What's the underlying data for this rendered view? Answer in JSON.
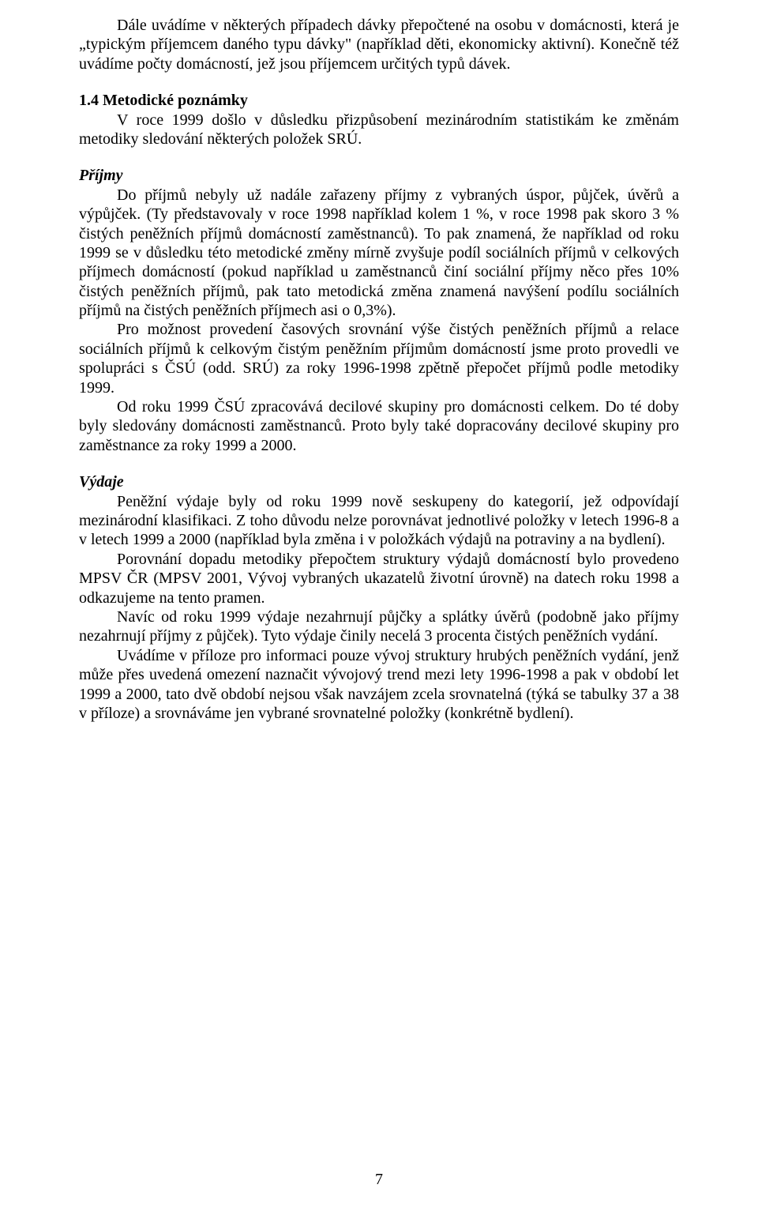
{
  "page": {
    "number": "7",
    "font_family": "Times New Roman",
    "font_size_pt": 15,
    "text_color": "#000000",
    "background_color": "#ffffff"
  },
  "p1": "Dále uvádíme v některých případech dávky přepočtené na osobu v domácnosti, která je „typickým příjemcem daného typu dávky\" (například děti, ekonomicky aktivní). Konečně též uvádíme  počty domácností, jež jsou příjemcem určitých typů dávek.",
  "h14_title": "1.4 Metodické poznámky",
  "h14_body": "V roce 1999 došlo v důsledku přizpůsobení mezinárodním statistikám ke změnám metodiky sledování některých položek SRÚ.",
  "prijmy_title": "Příjmy",
  "prijmy_p1": "Do příjmů nebyly už nadále zařazeny příjmy z vybraných úspor, půjček, úvěrů a výpůjček. (Ty představovaly v roce 1998 například kolem 1 %, v roce 1998 pak skoro 3 % čistých peněžních příjmů domácností zaměstnanců). To pak znamená, že například od roku 1999 se v důsledku této metodické změny mírně zvyšuje podíl sociálních příjmů v celkových příjmech domácností (pokud například u zaměstnanců činí sociální příjmy něco přes 10% čistých peněžních příjmů, pak tato metodická změna znamená navýšení podílu sociálních příjmů na čistých peněžních příjmech asi o 0,3%).",
  "prijmy_p2": "Pro možnost provedení časových srovnání výše čistých peněžních příjmů a relace sociálních příjmů k celkovým   čistým   peněžním příjmům domácností jsme proto provedli ve spolupráci s ČSÚ (odd. SRÚ) za roky 1996-1998 zpětně přepočet příjmů podle metodiky 1999.",
  "prijmy_p3": "Od roku 1999 ČSÚ zpracovává decilové skupiny pro domácnosti celkem. Do té doby byly sledovány domácnosti zaměstnanců. Proto byly také dopracovány decilové skupiny pro zaměstnance za roky 1999 a 2000.",
  "vydaje_title": "Výdaje",
  "vydaje_p1": "Peněžní výdaje byly od roku 1999 nově seskupeny do kategorií, jež odpovídají mezinárodní klasifikaci. Z toho důvodu nelze porovnávat jednotlivé položky v letech 1996-8 a v letech 1999 a 2000 (například byla změna i v položkách výdajů na potraviny a na bydlení).",
  "vydaje_p2": "Porovnání dopadu metodiky přepočtem struktury výdajů domácností bylo provedeno MPSV ČR (MPSV 2001, Vývoj vybraných ukazatelů životní úrovně) na datech roku 1998 a odkazujeme na tento pramen.",
  "vydaje_p3": "Navíc od roku 1999 výdaje nezahrnují půjčky a splátky úvěrů (podobně jako příjmy nezahrnují příjmy z půjček). Tyto výdaje činily necelá 3 procenta čistých peněžních vydání.",
  "vydaje_p4": "Uvádíme v příloze pro informaci pouze vývoj struktury hrubých peněžních vydání, jenž může přes uvedená omezení naznačit vývojový trend mezi lety 1996-1998 a pak v období let 1999 a 2000, tato dvě období nejsou však navzájem zcela srovnatelná (týká se tabulky 37 a 38 v příloze) a srovnáváme jen vybrané srovnatelné položky (konkrétně bydlení)."
}
